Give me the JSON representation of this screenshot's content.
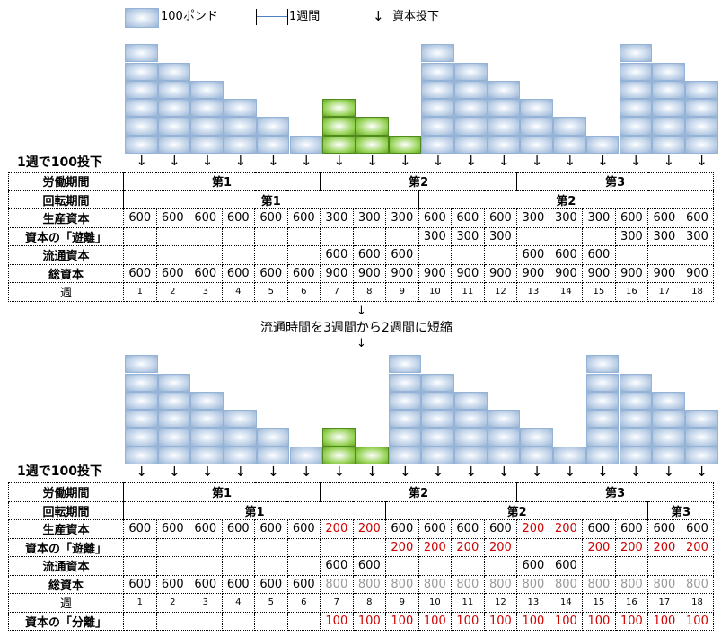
{
  "legend": {
    "block_label": "100ポンド",
    "week_label": "1週間",
    "arrow_label": "資本投下",
    "arrow_glyph": "↓"
  },
  "colors": {
    "production_block": "#b8cce4",
    "circulation_block": "#92d050",
    "red_value": "#d00000",
    "gray_value": "#999999"
  },
  "top": {
    "invest_label": "1週で100投下",
    "block_heights": [
      6,
      5,
      4,
      3,
      2,
      1,
      3,
      2,
      1,
      6,
      5,
      4,
      3,
      2,
      1,
      6,
      5,
      4
    ],
    "green_weeks": [
      7,
      8,
      9
    ],
    "labor_label": "労働期間",
    "labor_periods": [
      {
        "label": "第1",
        "span": 6
      },
      {
        "label": "第2",
        "span": 6
      },
      {
        "label": "第3",
        "span": 6
      }
    ],
    "turnover_label": "回転期間",
    "turnover_periods": [
      {
        "label": "第1",
        "span": 9
      },
      {
        "label": "第2",
        "span": 9
      }
    ],
    "rows": [
      {
        "label": "生産資本",
        "values": [
          "600",
          "600",
          "600",
          "600",
          "600",
          "600",
          "300",
          "300",
          "300",
          "600",
          "600",
          "600",
          "300",
          "300",
          "300",
          "600",
          "600",
          "600"
        ]
      },
      {
        "label": "資本の「遊離」",
        "values": [
          "",
          "",
          "",
          "",
          "",
          "",
          "",
          "",
          "",
          "300",
          "300",
          "300",
          "",
          "",
          "",
          "300",
          "300",
          "300"
        ]
      },
      {
        "label": "流通資本",
        "values": [
          "",
          "",
          "",
          "",
          "",
          "",
          "600",
          "600",
          "600",
          "",
          "",
          "",
          "600",
          "600",
          "600",
          "",
          "",
          ""
        ]
      },
      {
        "label": "総資本",
        "values": [
          "600",
          "600",
          "600",
          "600",
          "600",
          "600",
          "900",
          "900",
          "900",
          "900",
          "900",
          "900",
          "900",
          "900",
          "900",
          "900",
          "900",
          "900"
        ]
      }
    ],
    "week_label": "週",
    "weeks": [
      "1",
      "2",
      "3",
      "4",
      "5",
      "6",
      "7",
      "8",
      "9",
      "10",
      "11",
      "12",
      "13",
      "14",
      "15",
      "16",
      "17",
      "18"
    ]
  },
  "middle_note": "流通時間を3週間から2週間に短縮",
  "bottom": {
    "invest_label": "1週で100投下",
    "block_heights": [
      6,
      5,
      4,
      3,
      2,
      1,
      2,
      1,
      6,
      5,
      4,
      3,
      2,
      1,
      6,
      5,
      4,
      3
    ],
    "green_weeks": [
      7,
      8
    ],
    "labor_label": "労働期間",
    "labor_periods": [
      {
        "label": "第1",
        "span": 6
      },
      {
        "label": "第2",
        "span": 6
      },
      {
        "label": "第3",
        "span": 6
      }
    ],
    "turnover_label": "回転期間",
    "turnover_periods": [
      {
        "label": "第1",
        "span": 8
      },
      {
        "label": "第2",
        "span": 8
      },
      {
        "label": "第3",
        "span": 2
      }
    ],
    "rows": [
      {
        "label": "生産資本",
        "values": [
          "600",
          "600",
          "600",
          "600",
          "600",
          "600",
          "200",
          "200",
          "600",
          "600",
          "600",
          "600",
          "200",
          "200",
          "600",
          "600",
          "600",
          "600"
        ],
        "styles": [
          "",
          "",
          "",
          "",
          "",
          "",
          "r",
          "r",
          "",
          "",
          "",
          "",
          "r",
          "r",
          "",
          "",
          "",
          ""
        ]
      },
      {
        "label": "資本の「遊離」",
        "values": [
          "",
          "",
          "",
          "",
          "",
          "",
          "",
          "",
          "200",
          "200",
          "200",
          "200",
          "",
          "",
          "200",
          "200",
          "200",
          "200"
        ],
        "styles": [
          "",
          "",
          "",
          "",
          "",
          "",
          "",
          "",
          "r",
          "r",
          "r",
          "r",
          "",
          "",
          "r",
          "r",
          "r",
          "r"
        ]
      },
      {
        "label": "流通資本",
        "values": [
          "",
          "",
          "",
          "",
          "",
          "",
          "600",
          "600",
          "",
          "",
          "",
          "",
          "600",
          "600",
          "",
          "",
          "",
          ""
        ],
        "styles": [
          "",
          "",
          "",
          "",
          "",
          "",
          "",
          "",
          "",
          "",
          "",
          "",
          "",
          "",
          "",
          "",
          "",
          ""
        ]
      },
      {
        "label": "総資本",
        "values": [
          "600",
          "600",
          "600",
          "600",
          "600",
          "600",
          "800",
          "800",
          "800",
          "800",
          "800",
          "800",
          "800",
          "800",
          "800",
          "800",
          "800",
          "800"
        ],
        "styles": [
          "",
          "",
          "",
          "",
          "",
          "",
          "g",
          "g",
          "g",
          "g",
          "g",
          "g",
          "g",
          "g",
          "g",
          "g",
          "g",
          "g"
        ]
      }
    ],
    "week_label": "週",
    "weeks": [
      "1",
      "2",
      "3",
      "4",
      "5",
      "6",
      "7",
      "8",
      "9",
      "10",
      "11",
      "12",
      "13",
      "14",
      "15",
      "16",
      "17",
      "18"
    ],
    "separation_label": "資本の「分離」",
    "separation_values": [
      "",
      "",
      "",
      "",
      "",
      "",
      "100",
      "100",
      "100",
      "100",
      "100",
      "100",
      "100",
      "100",
      "100",
      "100",
      "100",
      "100"
    ]
  }
}
